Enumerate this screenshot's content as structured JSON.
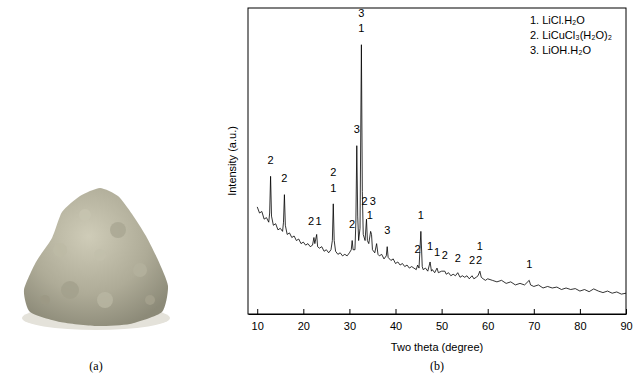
{
  "chart_data": {
    "type": "line",
    "panel_labels": [
      "(a)",
      "(b)"
    ],
    "xlabel": "Two theta (degree)",
    "ylabel": "Intensity (a.u.)",
    "xlim": [
      8,
      90
    ],
    "xticks": [
      10,
      20,
      30,
      40,
      50,
      60,
      70,
      80,
      90
    ],
    "ylim": [
      0,
      100
    ],
    "tick_labels": "x",
    "grid": false,
    "key": [
      "1. LiCl.H₂O",
      "2. LiCuCl₃(H₂O)₂",
      "3. LiOH.H₂O"
    ],
    "x": [
      10.0,
      10.5,
      11.0,
      11.5,
      12.0,
      12.5,
      12.7,
      12.9,
      13.1,
      13.5,
      14.0,
      14.5,
      15.0,
      15.5,
      15.7,
      15.9,
      16.1,
      16.5,
      17.0,
      17.5,
      18.0,
      18.5,
      19.0,
      19.5,
      20.0,
      20.5,
      21.0,
      21.5,
      22.0,
      22.3,
      22.5,
      22.9,
      23.1,
      23.5,
      24.0,
      24.5,
      25.0,
      25.5,
      26.0,
      26.3,
      26.5,
      26.7,
      27.0,
      27.5,
      28.0,
      28.5,
      29.0,
      29.5,
      30.0,
      30.4,
      30.6,
      30.8,
      31.2,
      31.4,
      31.6,
      31.8,
      32.0,
      32.3,
      32.6,
      32.8,
      33.0,
      33.4,
      33.7,
      33.9,
      34.2,
      34.6,
      34.8,
      35.0,
      35.5,
      35.9,
      36.2,
      36.5,
      37.0,
      37.5,
      38.0,
      38.2,
      38.4,
      39.0,
      39.5,
      40.0,
      40.5,
      41.0,
      41.5,
      42.0,
      42.5,
      43.0,
      43.5,
      44.0,
      44.5,
      44.8,
      45.1,
      45.5,
      45.8,
      46.0,
      46.5,
      47.0,
      47.5,
      47.8,
      48.0,
      48.5,
      49.0,
      49.3,
      50.0,
      50.7,
      51.0,
      51.5,
      52.0,
      52.5,
      53.0,
      53.5,
      54.0,
      54.5,
      55.0,
      55.5,
      56.0,
      56.6,
      57.0,
      57.5,
      57.9,
      58.3,
      58.6,
      59.0,
      59.5,
      60.0,
      61.0,
      62.0,
      63.0,
      64.0,
      65.0,
      66.0,
      67.0,
      68.0,
      69.0,
      69.3,
      70.0,
      71.0,
      72.0,
      73.0,
      74.0,
      75.0,
      76.0,
      77.0,
      78.0,
      79.0,
      80.0,
      81.0,
      82.0,
      83.0,
      84.0,
      85.0,
      86.0,
      87.0,
      88.0,
      89.0,
      90.0
    ],
    "series": [
      {
        "color": "#000000",
        "values": [
          35,
          33,
          33.5,
          31,
          31.5,
          30,
          33,
          45,
          32,
          29,
          29.5,
          27.5,
          28,
          27,
          30,
          39,
          29,
          26,
          26.5,
          25,
          25.5,
          24,
          24.5,
          23,
          23.5,
          22.5,
          23,
          22,
          22.5,
          25,
          23,
          26,
          22,
          21.5,
          22,
          20.5,
          21,
          20,
          21,
          24,
          36,
          24,
          20.5,
          19.5,
          20,
          19,
          19.5,
          19,
          20,
          21,
          24,
          21,
          21,
          30,
          55,
          32,
          24,
          28,
          88,
          40,
          26,
          24,
          31,
          24,
          23,
          27,
          26,
          21,
          20,
          23,
          19.5,
          19,
          19.5,
          18,
          19,
          22,
          18.5,
          17.5,
          18,
          16.5,
          17,
          16,
          16.5,
          15.5,
          16,
          15,
          15.5,
          15,
          14.5,
          16,
          15,
          27,
          15.5,
          14.5,
          15,
          14,
          17,
          14,
          14.5,
          13.5,
          15,
          13.5,
          14,
          14,
          13,
          13.5,
          12.5,
          13,
          12.5,
          13.5,
          12,
          12.5,
          12,
          12.5,
          11.5,
          12.5,
          11.5,
          12,
          12.5,
          14,
          12,
          11.5,
          11,
          11.5,
          11,
          10.5,
          11,
          10,
          10.5,
          9.5,
          10,
          9.5,
          11,
          9.5,
          9,
          9.5,
          8.5,
          9,
          8.5,
          8.8,
          8,
          8.5,
          8,
          8.3,
          7.5,
          8,
          7.3,
          8.2,
          7.5,
          7,
          7.5,
          6.8,
          7.2,
          6.5,
          6.8
        ]
      }
    ],
    "annotations": [
      {
        "x": 12.9,
        "y": 49,
        "text": "2"
      },
      {
        "x": 15.9,
        "y": 43,
        "text": "2"
      },
      {
        "x": 21.7,
        "y": 29,
        "text": "2"
      },
      {
        "x": 23.3,
        "y": 29,
        "text": "1"
      },
      {
        "x": 26.5,
        "y": 45,
        "text": "2"
      },
      {
        "x": 26.5,
        "y": 40,
        "text": "1"
      },
      {
        "x": 30.6,
        "y": 28,
        "text": "2"
      },
      {
        "x": 31.6,
        "y": 59,
        "text": "3"
      },
      {
        "x": 32.6,
        "y": 97,
        "text": "3"
      },
      {
        "x": 32.6,
        "y": 92,
        "text": "1"
      },
      {
        "x": 33.3,
        "y": 35.5,
        "text": "2"
      },
      {
        "x": 35.1,
        "y": 35.5,
        "text": "3"
      },
      {
        "x": 34.4,
        "y": 31,
        "text": "1"
      },
      {
        "x": 38.2,
        "y": 26,
        "text": "3"
      },
      {
        "x": 44.8,
        "y": 20,
        "text": "2"
      },
      {
        "x": 45.5,
        "y": 31,
        "text": "1"
      },
      {
        "x": 47.5,
        "y": 21,
        "text": "1"
      },
      {
        "x": 49.0,
        "y": 19,
        "text": "1"
      },
      {
        "x": 50.7,
        "y": 18,
        "text": "2"
      },
      {
        "x": 53.5,
        "y": 17,
        "text": "2"
      },
      {
        "x": 56.6,
        "y": 16.5,
        "text": "2"
      },
      {
        "x": 58.3,
        "y": 21,
        "text": "1"
      },
      {
        "x": 58.1,
        "y": 16.5,
        "text": "2"
      },
      {
        "x": 69.0,
        "y": 15,
        "text": "1"
      }
    ]
  }
}
